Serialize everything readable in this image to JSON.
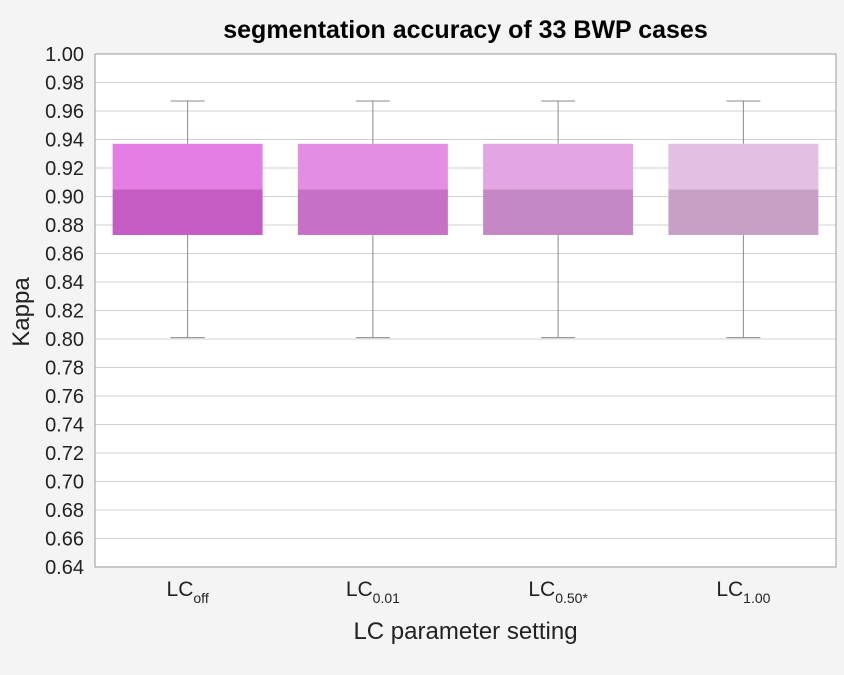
{
  "chart_data": {
    "type": "box",
    "title": "segmentation accuracy of 33 BWP cases",
    "xlabel": "LC parameter setting",
    "ylabel": "Kappa",
    "ylim": [
      0.64,
      1.0
    ],
    "yticks": [
      "0.64",
      "0.66",
      "0.68",
      "0.70",
      "0.72",
      "0.74",
      "0.76",
      "0.78",
      "0.80",
      "0.82",
      "0.84",
      "0.86",
      "0.88",
      "0.90",
      "0.92",
      "0.94",
      "0.96",
      "0.98",
      "1.00"
    ],
    "grid": true,
    "categories": [
      {
        "base": "LC",
        "sub": "off"
      },
      {
        "base": "LC",
        "sub": "0.01"
      },
      {
        "base": "LC",
        "sub": "0.50*"
      },
      {
        "base": "LC",
        "sub": "1.00"
      }
    ],
    "series": [
      {
        "whisker_low": 0.801,
        "q1": 0.873,
        "median": 0.905,
        "q3": 0.937,
        "whisker_high": 0.967,
        "color_upper": "#e47ee4",
        "color_lower": "#c45cc4"
      },
      {
        "whisker_low": 0.801,
        "q1": 0.873,
        "median": 0.905,
        "q3": 0.937,
        "whisker_high": 0.967,
        "color_upper": "#e38ee3",
        "color_lower": "#c670c6"
      },
      {
        "whisker_low": 0.801,
        "q1": 0.873,
        "median": 0.905,
        "q3": 0.937,
        "whisker_high": 0.967,
        "color_upper": "#e3a6e3",
        "color_lower": "#c488c4"
      },
      {
        "whisker_low": 0.801,
        "q1": 0.873,
        "median": 0.905,
        "q3": 0.937,
        "whisker_high": 0.967,
        "color_upper": "#e3bfe3",
        "color_lower": "#c6a0c6"
      }
    ]
  }
}
